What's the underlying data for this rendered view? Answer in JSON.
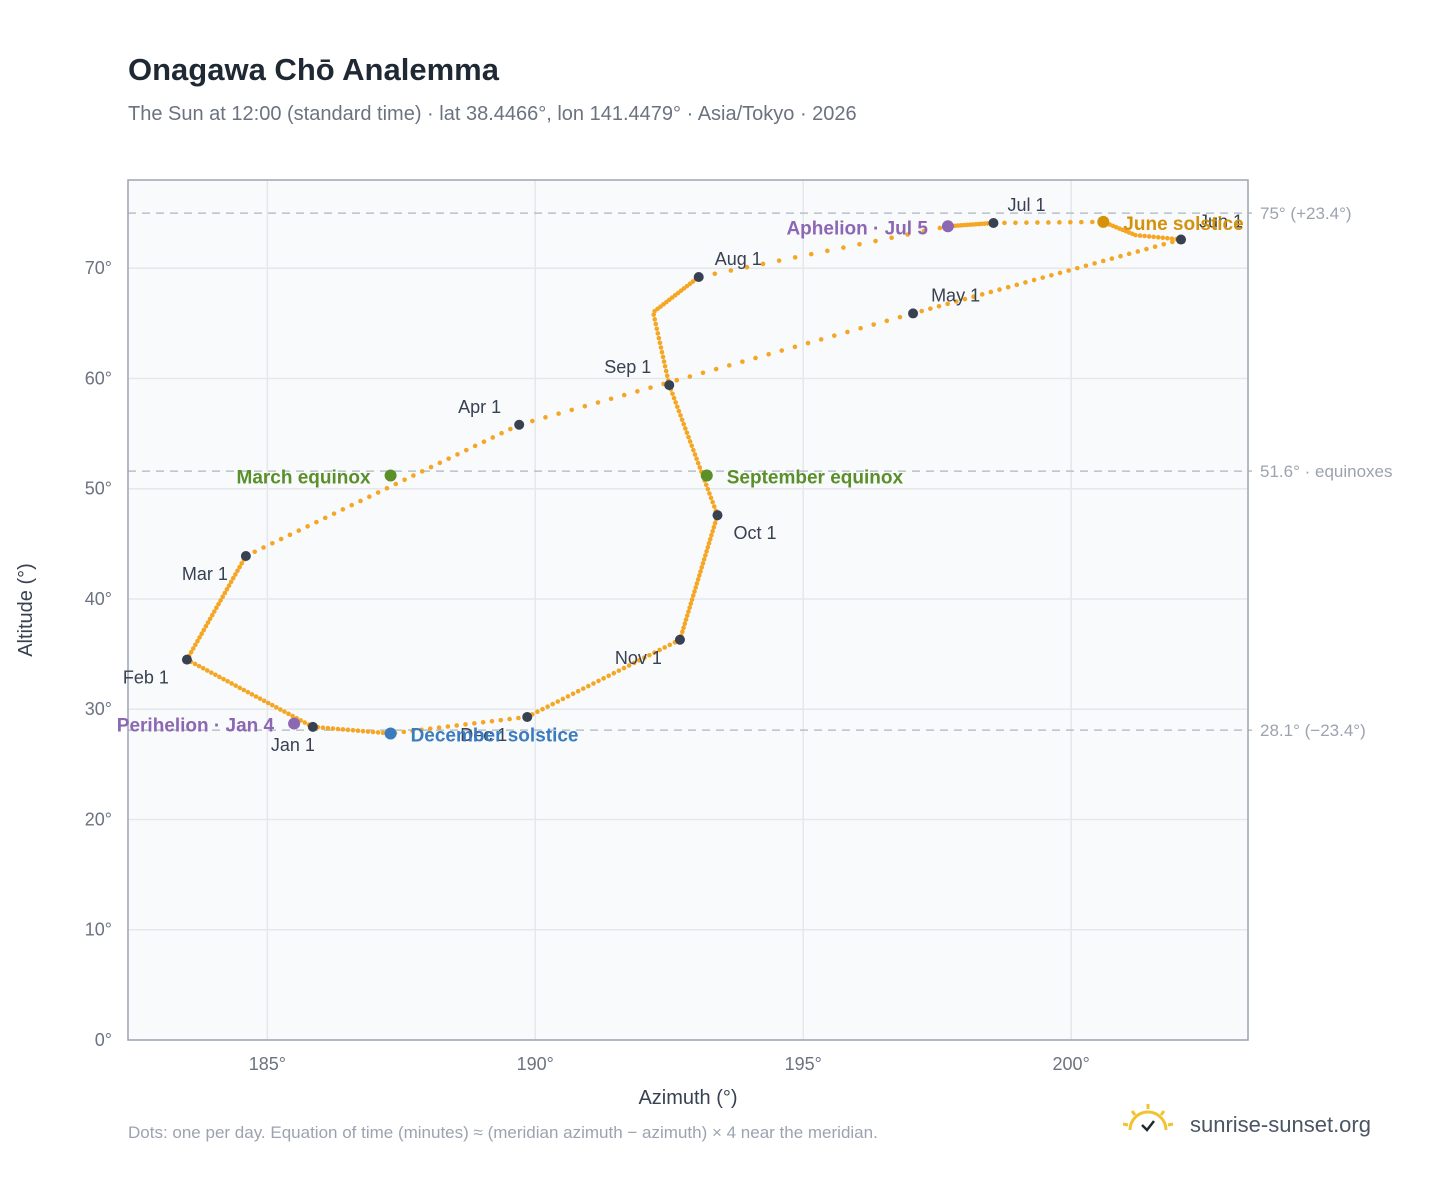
{
  "header": {
    "title": "Onagawa Chō Analemma",
    "subtitle": "The Sun at 12:00 (standard time) · lat 38.4466°, lon 141.4479° · Asia/Tokyo · 2026"
  },
  "footer": {
    "note": "Dots: one per day. Equation of time (minutes) ≈ (meridian azimuth − azimuth) × 4 near the meridian.",
    "brand": "sunrise-sunset.org"
  },
  "colors": {
    "path": "#f5a623",
    "month_dot": "#374151",
    "june": "#d4920a",
    "december": "#3b7bbf",
    "equinox": "#5a8f29",
    "apsis": "#8c67b3",
    "plot_bg": "#f8fafc",
    "frame": "#9aa5b4",
    "grid": "#e5e7eb"
  },
  "chart_data": {
    "type": "scatter",
    "xlabel": "Azimuth (°)",
    "ylabel": "Altitude (°)",
    "xlim": [
      182.4,
      203.3
    ],
    "ylim": [
      0,
      78
    ],
    "x_ticks": [
      185,
      190,
      195,
      200
    ],
    "x_tick_labels": [
      "185°",
      "190°",
      "195°",
      "200°"
    ],
    "y_ticks": [
      0,
      10,
      20,
      30,
      40,
      50,
      60,
      70
    ],
    "y_tick_labels": [
      "0°",
      "10°",
      "20°",
      "30°",
      "40°",
      "50°",
      "60°",
      "70°"
    ],
    "grid": true,
    "reference_lines": [
      {
        "y": 75.0,
        "label": "75° (+23.4°)"
      },
      {
        "y": 51.6,
        "label": "51.6° · equinoxes"
      },
      {
        "y": 28.1,
        "label": "28.1° (−23.4°)"
      }
    ],
    "month_points": [
      {
        "label": "Jan 1",
        "az": 185.85,
        "alt": 28.4
      },
      {
        "label": "Feb 1",
        "az": 183.5,
        "alt": 34.5
      },
      {
        "label": "Mar 1",
        "az": 184.6,
        "alt": 43.9
      },
      {
        "label": "Apr 1",
        "az": 189.7,
        "alt": 55.8
      },
      {
        "label": "May 1",
        "az": 197.05,
        "alt": 65.9
      },
      {
        "label": "Jun 1",
        "az": 202.05,
        "alt": 72.6
      },
      {
        "label": "Jul 1",
        "az": 198.55,
        "alt": 74.1
      },
      {
        "label": "Aug 1",
        "az": 193.05,
        "alt": 69.2
      },
      {
        "label": "Sep 1",
        "az": 192.5,
        "alt": 59.4
      },
      {
        "label": "Oct 1",
        "az": 193.4,
        "alt": 47.6
      },
      {
        "label": "Nov 1",
        "az": 192.7,
        "alt": 36.3
      },
      {
        "label": "Dec 1",
        "az": 189.85,
        "alt": 29.3
      }
    ],
    "events": [
      {
        "label": "June solstice",
        "az": 200.6,
        "alt": 74.2,
        "kind": "june"
      },
      {
        "label": "December solstice",
        "az": 187.3,
        "alt": 27.8,
        "kind": "december"
      },
      {
        "label": "March equinox",
        "az": 187.3,
        "alt": 51.2,
        "kind": "equinox"
      },
      {
        "label": "September equinox",
        "az": 193.2,
        "alt": 51.2,
        "kind": "equinox"
      },
      {
        "label": "Aphelion · Jul 5",
        "az": 197.7,
        "alt": 73.8,
        "kind": "apsis"
      },
      {
        "label": "Perihelion · Jan 4",
        "az": 185.5,
        "alt": 28.7,
        "kind": "apsis"
      }
    ]
  }
}
